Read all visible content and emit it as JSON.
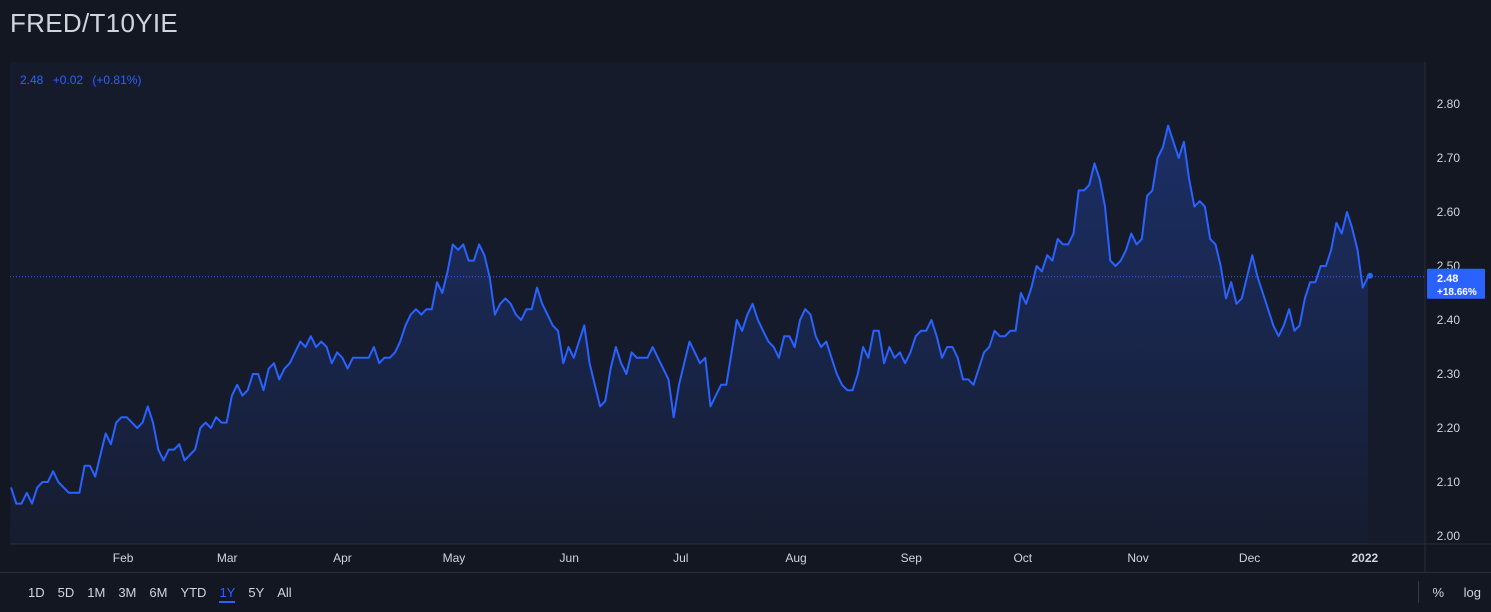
{
  "title": "FRED/T10YIE",
  "legend": {
    "value": "2.48",
    "change": "+0.02",
    "pct": "(+0.81%)"
  },
  "price_label": {
    "value": "2.48",
    "pct": "+18.66%"
  },
  "ranges": [
    "1D",
    "5D",
    "1M",
    "3M",
    "6M",
    "YTD",
    "1Y",
    "5Y",
    "All"
  ],
  "active_range": "1Y",
  "options": {
    "percent": "%",
    "log": "log"
  },
  "colors": {
    "background": "#131722",
    "panel": "#161b2b",
    "line": "#2962ff",
    "text": "#d1d4dc",
    "grid": "#2a2e39"
  },
  "chart_data": {
    "type": "area",
    "ylim": [
      2.0,
      2.85
    ],
    "yticks": [
      "2.80",
      "2.70",
      "2.60",
      "2.50",
      "2.40",
      "2.30",
      "2.20",
      "2.10",
      "2.00"
    ],
    "ytick_values": [
      2.8,
      2.7,
      2.6,
      2.5,
      2.4,
      2.3,
      2.2,
      2.1,
      2.0
    ],
    "xticks": [
      "Feb",
      "Mar",
      "Apr",
      "May",
      "Jun",
      "Jul",
      "Aug",
      "Sep",
      "Oct",
      "Nov",
      "Dec",
      "2022"
    ],
    "x_start": "2021-01-04",
    "x_end": "2022-01-04",
    "last_value": 2.48,
    "values": [
      2.09,
      2.06,
      2.06,
      2.08,
      2.06,
      2.09,
      2.1,
      2.1,
      2.12,
      2.1,
      2.09,
      2.08,
      2.08,
      2.08,
      2.13,
      2.13,
      2.11,
      2.15,
      2.19,
      2.17,
      2.21,
      2.22,
      2.22,
      2.21,
      2.2,
      2.21,
      2.24,
      2.21,
      2.16,
      2.14,
      2.16,
      2.16,
      2.17,
      2.14,
      2.15,
      2.16,
      2.2,
      2.21,
      2.2,
      2.22,
      2.21,
      2.21,
      2.26,
      2.28,
      2.26,
      2.27,
      2.3,
      2.3,
      2.27,
      2.31,
      2.32,
      2.29,
      2.31,
      2.32,
      2.34,
      2.36,
      2.35,
      2.37,
      2.35,
      2.36,
      2.35,
      2.32,
      2.34,
      2.33,
      2.31,
      2.33,
      2.33,
      2.33,
      2.33,
      2.35,
      2.32,
      2.33,
      2.33,
      2.34,
      2.36,
      2.39,
      2.41,
      2.42,
      2.41,
      2.42,
      2.42,
      2.47,
      2.45,
      2.49,
      2.54,
      2.53,
      2.54,
      2.51,
      2.51,
      2.54,
      2.52,
      2.48,
      2.41,
      2.43,
      2.44,
      2.43,
      2.41,
      2.4,
      2.42,
      2.42,
      2.46,
      2.43,
      2.41,
      2.39,
      2.38,
      2.32,
      2.35,
      2.33,
      2.36,
      2.39,
      2.32,
      2.28,
      2.24,
      2.25,
      2.31,
      2.35,
      2.32,
      2.3,
      2.34,
      2.33,
      2.33,
      2.33,
      2.35,
      2.33,
      2.31,
      2.29,
      2.22,
      2.28,
      2.32,
      2.36,
      2.34,
      2.32,
      2.33,
      2.24,
      2.26,
      2.28,
      2.28,
      2.34,
      2.4,
      2.38,
      2.41,
      2.43,
      2.4,
      2.38,
      2.36,
      2.35,
      2.33,
      2.37,
      2.37,
      2.35,
      2.4,
      2.42,
      2.41,
      2.37,
      2.35,
      2.36,
      2.33,
      2.3,
      2.28,
      2.27,
      2.27,
      2.3,
      2.35,
      2.33,
      2.38,
      2.38,
      2.32,
      2.35,
      2.33,
      2.34,
      2.32,
      2.34,
      2.37,
      2.38,
      2.38,
      2.4,
      2.37,
      2.33,
      2.35,
      2.35,
      2.33,
      2.29,
      2.29,
      2.28,
      2.31,
      2.34,
      2.35,
      2.38,
      2.37,
      2.37,
      2.38,
      2.38,
      2.45,
      2.43,
      2.46,
      2.5,
      2.49,
      2.52,
      2.51,
      2.55,
      2.54,
      2.54,
      2.56,
      2.64,
      2.64,
      2.65,
      2.69,
      2.66,
      2.61,
      2.51,
      2.5,
      2.51,
      2.53,
      2.56,
      2.54,
      2.55,
      2.63,
      2.64,
      2.7,
      2.72,
      2.76,
      2.73,
      2.7,
      2.73,
      2.66,
      2.61,
      2.62,
      2.61,
      2.55,
      2.54,
      2.5,
      2.44,
      2.47,
      2.43,
      2.44,
      2.48,
      2.52,
      2.48,
      2.45,
      2.42,
      2.39,
      2.37,
      2.39,
      2.42,
      2.38,
      2.39,
      2.44,
      2.47,
      2.47,
      2.5,
      2.5,
      2.53,
      2.58,
      2.56,
      2.6,
      2.57,
      2.53,
      2.46,
      2.48
    ]
  }
}
